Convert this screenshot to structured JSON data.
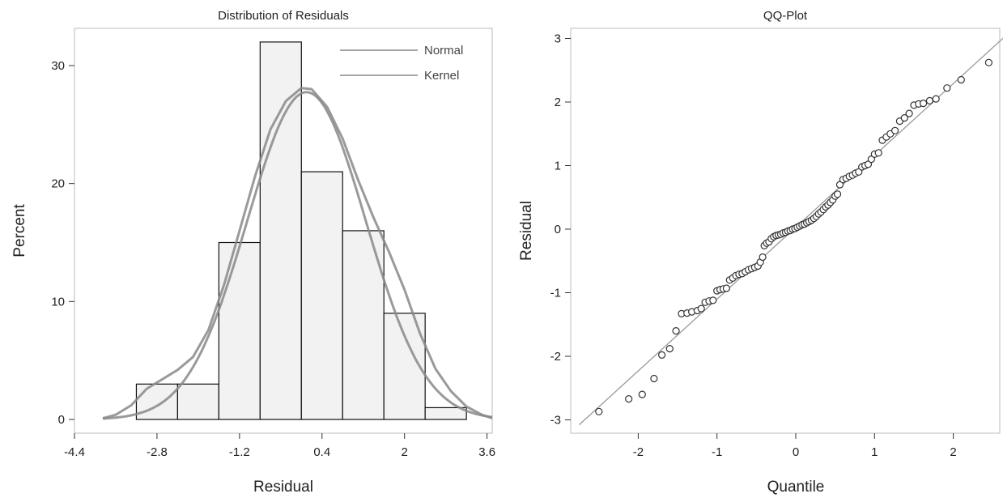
{
  "chart_data": [
    {
      "type": "bar",
      "title": "Distribution of Residuals",
      "xlabel": "Residual",
      "ylabel": "Percent",
      "xlim": [
        -4.4,
        3.7
      ],
      "ylim": [
        0,
        33
      ],
      "x_ticks": [
        -4.4,
        -2.8,
        -1.2,
        0.4,
        2,
        3.6
      ],
      "x_tick_labels": [
        "-4.4",
        "-2.8",
        "-1.2",
        "0.4",
        "2",
        "3.6"
      ],
      "y_ticks": [
        0,
        10,
        20,
        30
      ],
      "y_tick_labels": [
        "0",
        "10",
        "20",
        "30"
      ],
      "bin_width": 0.8,
      "bins": [
        {
          "center": -2.8,
          "value": 3
        },
        {
          "center": -2.0,
          "value": 3
        },
        {
          "center": -1.2,
          "value": 15
        },
        {
          "center": -0.4,
          "value": 32
        },
        {
          "center": 0.4,
          "value": 21
        },
        {
          "center": 1.2,
          "value": 16
        },
        {
          "center": 2.0,
          "value": 9
        },
        {
          "center": 2.8,
          "value": 1
        }
      ],
      "legend": {
        "position": "top-right",
        "entries": [
          "Normal",
          "Kernel"
        ]
      },
      "curves": [
        {
          "name": "Normal",
          "mean": 0.1,
          "sd": 1.15,
          "color": "#888888"
        },
        {
          "name": "Kernel",
          "color": "#888888",
          "points": [
            [
              -3.85,
              0.1
            ],
            [
              -3.6,
              0.4
            ],
            [
              -3.3,
              1.2
            ],
            [
              -3.0,
              2.6
            ],
            [
              -2.7,
              3.4
            ],
            [
              -2.4,
              4.2
            ],
            [
              -2.1,
              5.3
            ],
            [
              -1.8,
              7.6
            ],
            [
              -1.5,
              11.4
            ],
            [
              -1.2,
              16.0
            ],
            [
              -0.9,
              20.6
            ],
            [
              -0.6,
              24.6
            ],
            [
              -0.3,
              27.0
            ],
            [
              0.0,
              28.1
            ],
            [
              0.2,
              28.0
            ],
            [
              0.5,
              26.5
            ],
            [
              0.8,
              23.8
            ],
            [
              1.1,
              20.3
            ],
            [
              1.4,
              17.1
            ],
            [
              1.7,
              14.2
            ],
            [
              2.0,
              11.0
            ],
            [
              2.3,
              7.3
            ],
            [
              2.6,
              4.3
            ],
            [
              2.9,
              2.4
            ],
            [
              3.2,
              1.1
            ],
            [
              3.5,
              0.4
            ],
            [
              3.7,
              0.1
            ]
          ]
        }
      ],
      "bar_fill": "#f2f2f2",
      "bar_stroke": "#111111"
    },
    {
      "type": "scatter",
      "title": "QQ-Plot",
      "xlabel": "Quantile",
      "ylabel": "Residual",
      "xlim": [
        -2.75,
        2.65
      ],
      "ylim": [
        -3.15,
        3.3
      ],
      "x_ticks": [
        -2,
        -1,
        0,
        1,
        2
      ],
      "x_tick_labels": [
        "-2",
        "-1",
        "0",
        "1",
        "2"
      ],
      "y_ticks": [
        -3,
        -2,
        -1,
        0,
        1,
        2,
        3
      ],
      "y_tick_labels": [
        "-3",
        "-2",
        "-1",
        "0",
        "1",
        "2",
        "3"
      ],
      "reference_line": {
        "slope": 1.13,
        "intercept": 0.03,
        "color": "#999999"
      },
      "marker_color": "#333333",
      "points": [
        [
          -2.5,
          -2.87
        ],
        [
          -2.12,
          -2.67
        ],
        [
          -1.95,
          -2.6
        ],
        [
          -1.8,
          -2.35
        ],
        [
          -1.7,
          -1.98
        ],
        [
          -1.6,
          -1.88
        ],
        [
          -1.52,
          -1.6
        ],
        [
          -1.45,
          -1.33
        ],
        [
          -1.38,
          -1.32
        ],
        [
          -1.32,
          -1.3
        ],
        [
          -1.25,
          -1.28
        ],
        [
          -1.2,
          -1.25
        ],
        [
          -1.15,
          -1.15
        ],
        [
          -1.1,
          -1.13
        ],
        [
          -1.05,
          -1.12
        ],
        [
          -1.0,
          -0.97
        ],
        [
          -0.96,
          -0.95
        ],
        [
          -0.92,
          -0.94
        ],
        [
          -0.88,
          -0.93
        ],
        [
          -0.84,
          -0.8
        ],
        [
          -0.8,
          -0.77
        ],
        [
          -0.76,
          -0.73
        ],
        [
          -0.72,
          -0.71
        ],
        [
          -0.68,
          -0.7
        ],
        [
          -0.64,
          -0.67
        ],
        [
          -0.6,
          -0.64
        ],
        [
          -0.56,
          -0.62
        ],
        [
          -0.52,
          -0.6
        ],
        [
          -0.48,
          -0.58
        ],
        [
          -0.45,
          -0.52
        ],
        [
          -0.42,
          -0.44
        ],
        [
          -0.4,
          -0.26
        ],
        [
          -0.37,
          -0.22
        ],
        [
          -0.34,
          -0.2
        ],
        [
          -0.31,
          -0.15
        ],
        [
          -0.28,
          -0.12
        ],
        [
          -0.25,
          -0.1
        ],
        [
          -0.22,
          -0.09
        ],
        [
          -0.19,
          -0.08
        ],
        [
          -0.16,
          -0.06
        ],
        [
          -0.13,
          -0.05
        ],
        [
          -0.1,
          -0.03
        ],
        [
          -0.07,
          -0.02
        ],
        [
          -0.04,
          0.0
        ],
        [
          -0.01,
          0.01
        ],
        [
          0.02,
          0.03
        ],
        [
          0.05,
          0.05
        ],
        [
          0.08,
          0.07
        ],
        [
          0.11,
          0.08
        ],
        [
          0.14,
          0.1
        ],
        [
          0.17,
          0.12
        ],
        [
          0.2,
          0.14
        ],
        [
          0.23,
          0.17
        ],
        [
          0.26,
          0.2
        ],
        [
          0.29,
          0.24
        ],
        [
          0.32,
          0.27
        ],
        [
          0.35,
          0.31
        ],
        [
          0.38,
          0.35
        ],
        [
          0.41,
          0.38
        ],
        [
          0.44,
          0.42
        ],
        [
          0.47,
          0.46
        ],
        [
          0.5,
          0.52
        ],
        [
          0.53,
          0.55
        ],
        [
          0.56,
          0.7
        ],
        [
          0.6,
          0.78
        ],
        [
          0.64,
          0.8
        ],
        [
          0.68,
          0.83
        ],
        [
          0.72,
          0.85
        ],
        [
          0.76,
          0.88
        ],
        [
          0.8,
          0.9
        ],
        [
          0.84,
          0.98
        ],
        [
          0.88,
          1.0
        ],
        [
          0.92,
          1.02
        ],
        [
          0.96,
          1.1
        ],
        [
          1.0,
          1.18
        ],
        [
          1.05,
          1.2
        ],
        [
          1.1,
          1.4
        ],
        [
          1.15,
          1.45
        ],
        [
          1.2,
          1.5
        ],
        [
          1.26,
          1.55
        ],
        [
          1.32,
          1.7
        ],
        [
          1.38,
          1.75
        ],
        [
          1.44,
          1.82
        ],
        [
          1.5,
          1.95
        ],
        [
          1.56,
          1.97
        ],
        [
          1.62,
          1.98
        ],
        [
          1.7,
          2.02
        ],
        [
          1.78,
          2.05
        ],
        [
          1.92,
          2.22
        ],
        [
          2.1,
          2.35
        ],
        [
          2.45,
          2.62
        ]
      ]
    }
  ]
}
